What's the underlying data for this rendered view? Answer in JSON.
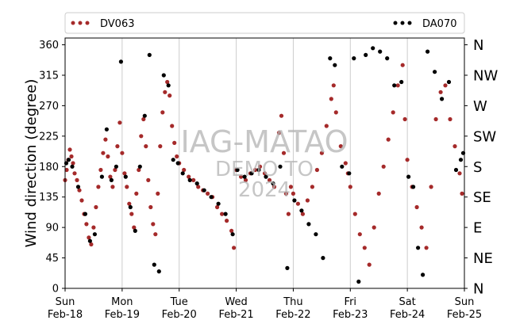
{
  "chart_data": {
    "type": "scatter",
    "ylabel": "Wind direction (degree)",
    "xlabel": "",
    "title": "",
    "ylim": [
      0,
      370
    ],
    "yticks": [
      0,
      45,
      90,
      135,
      180,
      225,
      270,
      315,
      360
    ],
    "compass_ticks": [
      {
        "value": 0,
        "label": "N"
      },
      {
        "value": 45,
        "label": "NE"
      },
      {
        "value": 90,
        "label": "E"
      },
      {
        "value": 135,
        "label": "SE"
      },
      {
        "value": 180,
        "label": "S"
      },
      {
        "value": 225,
        "label": "SW"
      },
      {
        "value": 270,
        "label": "W"
      },
      {
        "value": 315,
        "label": "NW"
      },
      {
        "value": 360,
        "label": "N"
      }
    ],
    "xlim": [
      "2024-02-18T00:00",
      "2024-02-25T00:00"
    ],
    "xticks": [
      {
        "value": "2024-02-18T00:00",
        "day": "Sun",
        "date": "Feb-18"
      },
      {
        "value": "2024-02-19T00:00",
        "day": "Mon",
        "date": "Feb-19"
      },
      {
        "value": "2024-02-20T00:00",
        "day": "Tue",
        "date": "Feb-20"
      },
      {
        "value": "2024-02-21T00:00",
        "day": "Wed",
        "date": "Feb-21"
      },
      {
        "value": "2024-02-22T00:00",
        "day": "Thu",
        "date": "Feb-22"
      },
      {
        "value": "2024-02-23T00:00",
        "day": "Fri",
        "date": "Feb-23"
      },
      {
        "value": "2024-02-24T00:00",
        "day": "Sat",
        "date": "Feb-24"
      },
      {
        "value": "2024-02-25T00:00",
        "day": "Sun",
        "date": "Feb-25"
      }
    ],
    "grid": "vertical-daily",
    "legend": {
      "placement": "top",
      "entries": [
        "DV063",
        "DA070"
      ]
    },
    "series": [
      {
        "name": "DV063",
        "color": "#a52a2a",
        "points": [
          [
            "2024-02-18T00:00",
            160
          ],
          [
            "2024-02-18T00:40",
            175
          ],
          [
            "2024-02-18T01:20",
            190
          ],
          [
            "2024-02-18T02:00",
            205
          ],
          [
            "2024-02-18T02:40",
            195
          ],
          [
            "2024-02-18T03:20",
            185
          ],
          [
            "2024-02-18T04:00",
            170
          ],
          [
            "2024-02-18T05:00",
            160
          ],
          [
            "2024-02-18T06:00",
            145
          ],
          [
            "2024-02-18T07:00",
            130
          ],
          [
            "2024-02-18T08:00",
            110
          ],
          [
            "2024-02-18T09:00",
            95
          ],
          [
            "2024-02-18T10:00",
            75
          ],
          [
            "2024-02-18T11:00",
            65
          ],
          [
            "2024-02-18T12:00",
            90
          ],
          [
            "2024-02-18T13:00",
            120
          ],
          [
            "2024-02-18T14:00",
            150
          ],
          [
            "2024-02-18T15:00",
            175
          ],
          [
            "2024-02-18T16:00",
            200
          ],
          [
            "2024-02-18T17:00",
            220
          ],
          [
            "2024-02-18T18:00",
            195
          ],
          [
            "2024-02-18T19:00",
            165
          ],
          [
            "2024-02-18T20:00",
            150
          ],
          [
            "2024-02-18T21:00",
            175
          ],
          [
            "2024-02-18T22:00",
            210
          ],
          [
            "2024-02-18T23:00",
            245
          ],
          [
            "2024-02-19T00:00",
            200
          ],
          [
            "2024-02-19T01:00",
            170
          ],
          [
            "2024-02-19T02:00",
            150
          ],
          [
            "2024-02-19T03:00",
            125
          ],
          [
            "2024-02-19T04:00",
            110
          ],
          [
            "2024-02-19T05:00",
            90
          ],
          [
            "2024-02-19T06:00",
            140
          ],
          [
            "2024-02-19T07:00",
            175
          ],
          [
            "2024-02-19T08:00",
            225
          ],
          [
            "2024-02-19T09:00",
            250
          ],
          [
            "2024-02-19T10:00",
            210
          ],
          [
            "2024-02-19T11:00",
            160
          ],
          [
            "2024-02-19T12:00",
            120
          ],
          [
            "2024-02-19T13:00",
            95
          ],
          [
            "2024-02-19T14:00",
            80
          ],
          [
            "2024-02-19T15:00",
            140
          ],
          [
            "2024-02-19T16:00",
            210
          ],
          [
            "2024-02-19T17:00",
            260
          ],
          [
            "2024-02-19T18:00",
            290
          ],
          [
            "2024-02-19T19:00",
            305
          ],
          [
            "2024-02-19T20:00",
            285
          ],
          [
            "2024-02-19T21:00",
            240
          ],
          [
            "2024-02-19T22:00",
            215
          ],
          [
            "2024-02-19T23:00",
            195
          ],
          [
            "2024-02-20T00:00",
            185
          ],
          [
            "2024-02-20T02:00",
            175
          ],
          [
            "2024-02-20T04:00",
            165
          ],
          [
            "2024-02-20T06:00",
            160
          ],
          [
            "2024-02-20T08:00",
            150
          ],
          [
            "2024-02-20T10:00",
            145
          ],
          [
            "2024-02-20T12:00",
            140
          ],
          [
            "2024-02-20T14:00",
            135
          ],
          [
            "2024-02-20T16:00",
            120
          ],
          [
            "2024-02-20T18:00",
            110
          ],
          [
            "2024-02-20T20:00",
            100
          ],
          [
            "2024-02-20T22:00",
            85
          ],
          [
            "2024-02-20T23:00",
            60
          ],
          [
            "2024-02-21T00:00",
            175
          ],
          [
            "2024-02-21T02:00",
            165
          ],
          [
            "2024-02-21T04:00",
            160
          ],
          [
            "2024-02-21T06:00",
            170
          ],
          [
            "2024-02-21T08:00",
            175
          ],
          [
            "2024-02-21T10:00",
            180
          ],
          [
            "2024-02-21T12:00",
            170
          ],
          [
            "2024-02-21T14:00",
            160
          ],
          [
            "2024-02-21T16:00",
            150
          ],
          [
            "2024-02-21T18:00",
            230
          ],
          [
            "2024-02-21T19:00",
            255
          ],
          [
            "2024-02-21T20:00",
            200
          ],
          [
            "2024-02-21T21:00",
            140
          ],
          [
            "2024-02-21T22:00",
            110
          ],
          [
            "2024-02-21T23:00",
            150
          ],
          [
            "2024-02-22T00:00",
            140
          ],
          [
            "2024-02-22T02:00",
            125
          ],
          [
            "2024-02-22T04:00",
            110
          ],
          [
            "2024-02-22T06:00",
            130
          ],
          [
            "2024-02-22T08:00",
            150
          ],
          [
            "2024-02-22T10:00",
            175
          ],
          [
            "2024-02-22T12:00",
            200
          ],
          [
            "2024-02-22T14:00",
            240
          ],
          [
            "2024-02-22T16:00",
            280
          ],
          [
            "2024-02-22T17:00",
            300
          ],
          [
            "2024-02-22T18:00",
            260
          ],
          [
            "2024-02-22T20:00",
            210
          ],
          [
            "2024-02-22T22:00",
            185
          ],
          [
            "2024-02-22T23:00",
            170
          ],
          [
            "2024-02-23T00:00",
            150
          ],
          [
            "2024-02-23T02:00",
            110
          ],
          [
            "2024-02-23T04:00",
            80
          ],
          [
            "2024-02-23T06:00",
            60
          ],
          [
            "2024-02-23T08:00",
            35
          ],
          [
            "2024-02-23T10:00",
            90
          ],
          [
            "2024-02-23T12:00",
            140
          ],
          [
            "2024-02-23T14:00",
            180
          ],
          [
            "2024-02-23T16:00",
            220
          ],
          [
            "2024-02-23T18:00",
            260
          ],
          [
            "2024-02-23T20:00",
            300
          ],
          [
            "2024-02-23T22:00",
            330
          ],
          [
            "2024-02-23T23:00",
            250
          ],
          [
            "2024-02-24T00:00",
            190
          ],
          [
            "2024-02-24T02:00",
            150
          ],
          [
            "2024-02-24T04:00",
            120
          ],
          [
            "2024-02-24T06:00",
            90
          ],
          [
            "2024-02-24T08:00",
            60
          ],
          [
            "2024-02-24T10:00",
            150
          ],
          [
            "2024-02-24T12:00",
            250
          ],
          [
            "2024-02-24T14:00",
            290
          ],
          [
            "2024-02-24T16:00",
            300
          ],
          [
            "2024-02-24T18:00",
            250
          ],
          [
            "2024-02-24T20:00",
            210
          ],
          [
            "2024-02-24T22:00",
            170
          ],
          [
            "2024-02-24T23:00",
            140
          ]
        ]
      },
      {
        "name": "DA070",
        "color": "#000000",
        "points": [
          [
            "2024-02-18T00:30",
            185
          ],
          [
            "2024-02-18T01:30",
            190
          ],
          [
            "2024-02-18T03:00",
            180
          ],
          [
            "2024-02-18T05:30",
            150
          ],
          [
            "2024-02-18T08:30",
            110
          ],
          [
            "2024-02-18T10:30",
            70
          ],
          [
            "2024-02-18T12:30",
            80
          ],
          [
            "2024-02-18T15:30",
            165
          ],
          [
            "2024-02-18T17:30",
            235
          ],
          [
            "2024-02-18T19:30",
            160
          ],
          [
            "2024-02-18T21:30",
            180
          ],
          [
            "2024-02-18T23:30",
            335
          ],
          [
            "2024-02-19T01:30",
            165
          ],
          [
            "2024-02-19T03:30",
            120
          ],
          [
            "2024-02-19T05:30",
            85
          ],
          [
            "2024-02-19T07:30",
            180
          ],
          [
            "2024-02-19T09:30",
            255
          ],
          [
            "2024-02-19T11:30",
            345
          ],
          [
            "2024-02-19T13:30",
            35
          ],
          [
            "2024-02-19T15:30",
            25
          ],
          [
            "2024-02-19T17:30",
            315
          ],
          [
            "2024-02-19T19:30",
            300
          ],
          [
            "2024-02-19T21:30",
            190
          ],
          [
            "2024-02-19T23:30",
            185
          ],
          [
            "2024-02-20T01:30",
            170
          ],
          [
            "2024-02-20T04:30",
            160
          ],
          [
            "2024-02-20T07:30",
            155
          ],
          [
            "2024-02-20T10:30",
            145
          ],
          [
            "2024-02-20T13:30",
            135
          ],
          [
            "2024-02-20T16:30",
            125
          ],
          [
            "2024-02-20T19:30",
            110
          ],
          [
            "2024-02-20T22:30",
            80
          ],
          [
            "2024-02-21T00:30",
            175
          ],
          [
            "2024-02-21T03:30",
            165
          ],
          [
            "2024-02-21T06:30",
            170
          ],
          [
            "2024-02-21T09:30",
            175
          ],
          [
            "2024-02-21T12:30",
            165
          ],
          [
            "2024-02-21T15:30",
            155
          ],
          [
            "2024-02-21T18:30",
            180
          ],
          [
            "2024-02-21T21:30",
            30
          ],
          [
            "2024-02-22T00:30",
            130
          ],
          [
            "2024-02-22T03:30",
            115
          ],
          [
            "2024-02-22T06:30",
            95
          ],
          [
            "2024-02-22T09:30",
            80
          ],
          [
            "2024-02-22T12:30",
            45
          ],
          [
            "2024-02-22T15:30",
            340
          ],
          [
            "2024-02-22T17:30",
            330
          ],
          [
            "2024-02-22T20:30",
            180
          ],
          [
            "2024-02-22T23:30",
            170
          ],
          [
            "2024-02-23T01:30",
            340
          ],
          [
            "2024-02-23T03:30",
            10
          ],
          [
            "2024-02-23T06:30",
            345
          ],
          [
            "2024-02-23T09:30",
            355
          ],
          [
            "2024-02-23T12:30",
            350
          ],
          [
            "2024-02-23T15:30",
            340
          ],
          [
            "2024-02-23T18:30",
            300
          ],
          [
            "2024-02-23T21:30",
            305
          ],
          [
            "2024-02-24T00:30",
            165
          ],
          [
            "2024-02-24T02:30",
            150
          ],
          [
            "2024-02-24T04:30",
            60
          ],
          [
            "2024-02-24T06:30",
            20
          ],
          [
            "2024-02-24T08:30",
            350
          ],
          [
            "2024-02-24T11:30",
            320
          ],
          [
            "2024-02-24T14:30",
            280
          ],
          [
            "2024-02-24T17:30",
            305
          ],
          [
            "2024-02-24T20:30",
            175
          ],
          [
            "2024-02-24T22:30",
            190
          ],
          [
            "2024-02-24T23:30",
            200
          ]
        ]
      }
    ],
    "watermark": [
      "IAG-MATAO",
      "DEMO TO",
      "2024"
    ]
  }
}
